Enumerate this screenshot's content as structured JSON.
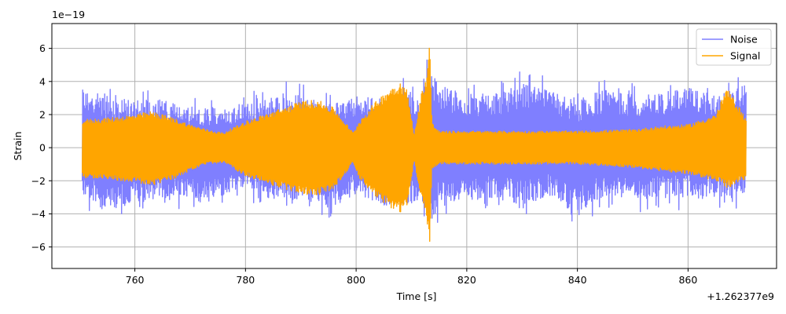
{
  "chart_data": {
    "type": "line",
    "title": "",
    "xlabel": "Time [s]",
    "ylabel": "Strain",
    "x_offset_label": "+1.262377e9",
    "y_scale_label": "1e−19",
    "xlim": [
      745,
      876
    ],
    "ylim": [
      -7.3,
      7.5
    ],
    "x_ticks": [
      760,
      780,
      800,
      820,
      840,
      860
    ],
    "x_tick_labels": [
      "760",
      "780",
      "800",
      "820",
      "840",
      "860"
    ],
    "y_ticks": [
      -6,
      -4,
      -2,
      0,
      2,
      4,
      6
    ],
    "y_tick_labels": [
      "−6",
      "−4",
      "−2",
      "0",
      "2",
      "4",
      "6"
    ],
    "grid": true,
    "legend_position": "upper right",
    "series": [
      {
        "name": "Noise",
        "color": "#7f7fff",
        "x": [
          750.5,
          755,
          760,
          765,
          770,
          775,
          780,
          785,
          790,
          795,
          800,
          805,
          810,
          812,
          813.3,
          815,
          820,
          825,
          830,
          835,
          840,
          845,
          850,
          855,
          860,
          865,
          870.5
        ],
        "upper": [
          4.3,
          4.1,
          3.6,
          3.7,
          3.0,
          3.2,
          3.3,
          3.9,
          4.1,
          3.4,
          3.8,
          3.9,
          4.4,
          4.0,
          6.5,
          4.7,
          4.1,
          4.0,
          4.8,
          4.2,
          3.9,
          4.3,
          4.0,
          4.1,
          4.5,
          3.9,
          4.6
        ],
        "lower": [
          -3.8,
          -4.7,
          -4.1,
          -3.9,
          -3.7,
          -3.8,
          -3.0,
          -4.2,
          -3.9,
          -4.5,
          -3.5,
          -4.3,
          -4.3,
          -4.0,
          -6.3,
          -4.5,
          -4.0,
          -3.8,
          -4.4,
          -3.7,
          -4.8,
          -3.7,
          -4.0,
          -3.8,
          -3.9,
          -3.8,
          -3.6
        ]
      },
      {
        "name": "Signal",
        "color": "#ffa500",
        "x": [
          750.5,
          755,
          760,
          763,
          767,
          770,
          773,
          776,
          780,
          785,
          790,
          793,
          796,
          799.5,
          800.5,
          803,
          806,
          808,
          809.2,
          810.5,
          811.8,
          812.8,
          813.3,
          813.7,
          815,
          820,
          830,
          840,
          850,
          855,
          860,
          865,
          867,
          870.5
        ],
        "upper": [
          1.7,
          1.8,
          2.0,
          2.2,
          1.8,
          1.4,
          1.1,
          0.9,
          1.6,
          2.2,
          2.8,
          2.9,
          2.4,
          0.9,
          1.6,
          2.6,
          3.6,
          4.0,
          3.5,
          0.8,
          3.3,
          4.5,
          6.8,
          1.5,
          1.0,
          1.0,
          1.0,
          1.0,
          1.1,
          1.3,
          1.4,
          2.0,
          3.6,
          1.8
        ],
        "lower": [
          -1.8,
          -1.9,
          -2.1,
          -2.3,
          -1.9,
          -1.4,
          -1.0,
          -0.9,
          -1.7,
          -2.3,
          -2.8,
          -2.9,
          -2.5,
          -0.9,
          -1.8,
          -2.8,
          -3.6,
          -4.0,
          -3.6,
          -0.8,
          -3.2,
          -4.3,
          -6.6,
          -1.4,
          -1.0,
          -1.0,
          -1.0,
          -1.0,
          -1.2,
          -1.4,
          -1.6,
          -2.0,
          -2.5,
          -1.9
        ]
      }
    ]
  }
}
